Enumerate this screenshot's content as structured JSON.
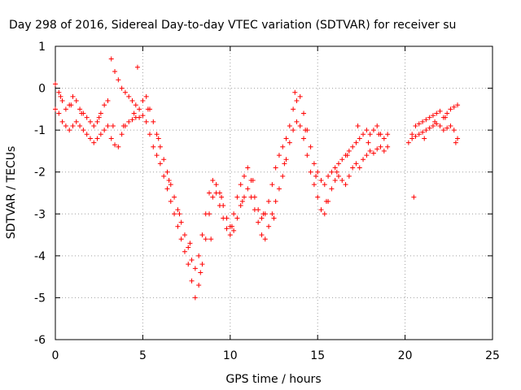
{
  "chart_data": {
    "type": "scatter",
    "title": "Day 298 of 2016, Sidereal Day-to-day VTEC variation (SDTVAR) for receiver su",
    "xlabel": "GPS time / hours",
    "ylabel": "SDTVAR / TECUs",
    "xlim": [
      0,
      25
    ],
    "ylim": [
      -6,
      1
    ],
    "xticks": [
      0,
      5,
      10,
      15,
      20,
      25
    ],
    "yticks": [
      -6,
      -5,
      -4,
      -3,
      -2,
      -1,
      0,
      1
    ],
    "grid": true,
    "marker": "plus",
    "color": "#ff0000",
    "series": [
      {
        "x": [
          0.0,
          0.2,
          0.4,
          0.6,
          0.8,
          1.0,
          1.2,
          1.4,
          1.6,
          1.8,
          2.0,
          2.2,
          2.4,
          2.6,
          2.8,
          3.0,
          3.2,
          3.4,
          3.6,
          3.8,
          4.0,
          4.2,
          4.4,
          4.6,
          4.8,
          5.0,
          5.2,
          5.4,
          5.6,
          5.8,
          6.0,
          6.2,
          6.4,
          6.6,
          6.8,
          7.0,
          7.2,
          7.4,
          7.6,
          7.8,
          8.0,
          8.2,
          8.4,
          8.6,
          8.8,
          9.0,
          9.2,
          9.4,
          9.6,
          9.8,
          10.0,
          10.2,
          10.4,
          10.6,
          10.8,
          11.0,
          11.2,
          11.4,
          11.6,
          11.8,
          12.0,
          12.2,
          12.4,
          12.6,
          12.8,
          13.0,
          13.2,
          13.4,
          13.6,
          13.8,
          14.0,
          14.2,
          14.4,
          14.6,
          14.8,
          15.0,
          15.2,
          15.4,
          15.6,
          15.8,
          16.0,
          16.2,
          16.4,
          16.6,
          16.8,
          17.0,
          17.2,
          17.4,
          17.6,
          17.8,
          18.0,
          18.2,
          18.4,
          18.6,
          18.8,
          19.0,
          20.4,
          20.6,
          20.8,
          21.0,
          21.2,
          21.4,
          21.6,
          21.8,
          22.0,
          22.2,
          22.4,
          22.6,
          22.8,
          23.0
        ],
        "y": [
          -0.5,
          -0.6,
          -0.8,
          -0.9,
          -1.0,
          -0.9,
          -0.8,
          -0.9,
          -1.0,
          -1.1,
          -1.2,
          -1.3,
          -1.2,
          -1.1,
          -1.0,
          -0.9,
          -1.2,
          -1.35,
          -1.4,
          -1.1,
          -0.9,
          -0.8,
          -0.75,
          -0.7,
          -0.7,
          -0.65,
          -0.8,
          -1.1,
          -1.4,
          -1.6,
          -1.8,
          -2.1,
          -2.4,
          -2.7,
          -3.0,
          -3.3,
          -3.6,
          -3.9,
          -4.2,
          -4.6,
          -5.0,
          -4.7,
          -4.2,
          -3.6,
          -3.0,
          -2.6,
          -2.5,
          -2.8,
          -3.1,
          -3.35,
          -3.5,
          -3.4,
          -3.1,
          -2.8,
          -2.6,
          -2.4,
          -2.6,
          -2.9,
          -3.2,
          -3.5,
          -3.6,
          -3.3,
          -3.0,
          -2.7,
          -2.4,
          -2.1,
          -1.7,
          -1.3,
          -1.0,
          -0.8,
          -0.9,
          -1.2,
          -1.6,
          -2.0,
          -2.3,
          -2.6,
          -2.9,
          -3.0,
          -2.7,
          -2.4,
          -2.2,
          -2.1,
          -2.2,
          -2.3,
          -2.1,
          -1.9,
          -1.8,
          -1.9,
          -1.7,
          -1.6,
          -1.5,
          -1.55,
          -1.45,
          -1.4,
          -1.5,
          -1.4,
          -1.2,
          -1.15,
          -1.1,
          -1.05,
          -1.0,
          -0.95,
          -0.9,
          -0.85,
          -0.9,
          -1.0,
          -0.95,
          -0.9,
          -1.0,
          -1.2
        ]
      },
      {
        "x": [
          0.0,
          0.2,
          0.4,
          0.6,
          0.8,
          1.0,
          1.2,
          1.4,
          1.6,
          1.8,
          2.0,
          2.2,
          2.4,
          2.6,
          2.8,
          3.0,
          3.2,
          3.4,
          3.6,
          3.8,
          4.0,
          4.2,
          4.4,
          4.6,
          4.8,
          5.0,
          5.2,
          5.4,
          5.6,
          5.8,
          6.0,
          6.2,
          6.4,
          6.6,
          6.8,
          7.0,
          7.2,
          7.4,
          7.6,
          7.8,
          8.0,
          8.2,
          8.4,
          8.6,
          8.8,
          9.0,
          9.2,
          9.4,
          9.6,
          9.8,
          10.0,
          10.2,
          10.4,
          10.6,
          10.8,
          11.0,
          11.2,
          11.4,
          11.6,
          11.8,
          12.0,
          12.2,
          12.4,
          12.6,
          12.8,
          13.0,
          13.2,
          13.4,
          13.6,
          13.8,
          14.0,
          14.2,
          14.4,
          14.6,
          14.8,
          15.0,
          15.2,
          15.4,
          15.6,
          15.8,
          16.0,
          16.2,
          16.4,
          16.6,
          16.8,
          17.0,
          17.2,
          17.4,
          17.6,
          17.8,
          18.0,
          18.2,
          18.4,
          18.6,
          18.8,
          19.0,
          20.4,
          20.6,
          20.8,
          21.0,
          21.2,
          21.4,
          21.6,
          21.8,
          22.0,
          22.2,
          22.4,
          22.6,
          22.8,
          23.0
        ],
        "y": [
          0.1,
          -0.1,
          -0.3,
          -0.5,
          -0.4,
          -0.2,
          -0.3,
          -0.5,
          -0.6,
          -0.7,
          -0.8,
          -0.9,
          -0.8,
          -0.6,
          -0.4,
          -0.3,
          0.7,
          0.4,
          0.2,
          0.0,
          -0.1,
          -0.2,
          -0.3,
          -0.4,
          -0.5,
          -0.3,
          -0.2,
          -0.5,
          -0.8,
          -1.1,
          -1.4,
          -1.7,
          -2.0,
          -2.3,
          -2.6,
          -2.9,
          -3.2,
          -3.5,
          -3.8,
          -4.1,
          -4.3,
          -4.0,
          -3.5,
          -3.0,
          -2.5,
          -2.2,
          -2.3,
          -2.5,
          -2.8,
          -3.1,
          -3.3,
          -3.0,
          -2.6,
          -2.3,
          -2.1,
          -1.9,
          -2.2,
          -2.6,
          -2.9,
          -3.1,
          -3.0,
          -2.7,
          -2.3,
          -1.9,
          -1.6,
          -1.4,
          -1.2,
          -0.9,
          -0.5,
          -0.3,
          -0.2,
          -0.6,
          -1.0,
          -1.4,
          -1.8,
          -2.0,
          -2.2,
          -2.3,
          -2.1,
          -2.0,
          -1.9,
          -1.8,
          -1.7,
          -1.6,
          -1.5,
          -1.4,
          -1.3,
          -1.2,
          -1.1,
          -1.0,
          -1.1,
          -1.0,
          -0.9,
          -1.1,
          -1.2,
          -1.1,
          -1.1,
          -0.9,
          -0.85,
          -0.8,
          -0.75,
          -0.7,
          -0.65,
          -0.6,
          -0.55,
          -0.7,
          -0.6,
          -0.5,
          -0.45,
          -0.4
        ]
      },
      {
        "x": [
          0.3,
          0.9,
          1.5,
          2.5,
          3.3,
          3.9,
          4.5,
          4.7,
          5.3,
          5.9,
          6.5,
          7.1,
          7.7,
          8.3,
          8.9,
          9.5,
          10.1,
          10.7,
          11.3,
          11.9,
          12.5,
          13.1,
          13.7,
          14.3,
          14.9,
          15.5,
          16.1,
          16.7,
          17.3,
          17.9,
          18.5,
          20.2,
          20.5,
          21.1,
          21.7,
          22.3,
          22.9
        ],
        "y": [
          -0.2,
          -0.4,
          -0.6,
          -0.7,
          -0.9,
          -0.9,
          -0.6,
          0.5,
          -0.5,
          -1.2,
          -2.2,
          -3.0,
          -3.7,
          -4.4,
          -3.6,
          -2.6,
          -3.3,
          -2.7,
          -2.2,
          -3.0,
          -3.1,
          -1.8,
          -0.1,
          -1.0,
          -2.1,
          -2.7,
          -2.0,
          -1.6,
          -0.9,
          -1.3,
          -1.1,
          -1.3,
          -2.6,
          -1.2,
          -0.8,
          -0.7,
          -1.3
        ]
      }
    ]
  }
}
